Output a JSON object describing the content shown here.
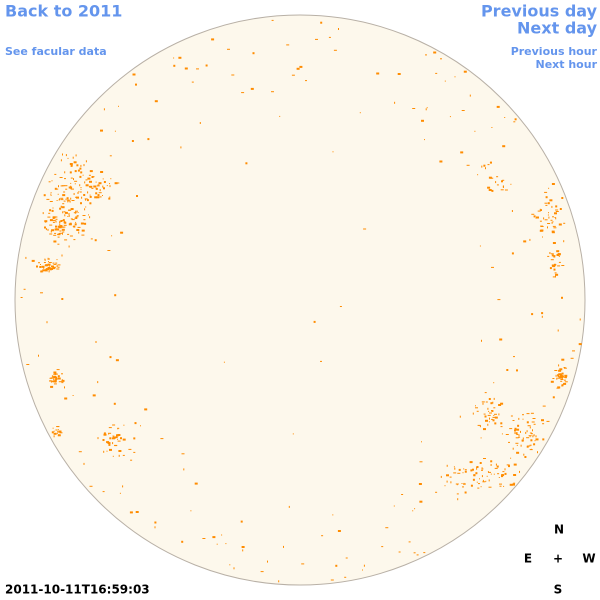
{
  "header": {
    "back_link": "Back to 2011",
    "facular_link": "See facular data"
  },
  "navigation": {
    "previous_day": "Previous day",
    "next_day": "Next day",
    "previous_hour": "Previous hour",
    "next_hour": "Next hour"
  },
  "timestamp": "2011-10-11T16:59:03",
  "compass": {
    "north": "N",
    "east": "E",
    "center": "+",
    "west": "W",
    "south": "S"
  }
}
